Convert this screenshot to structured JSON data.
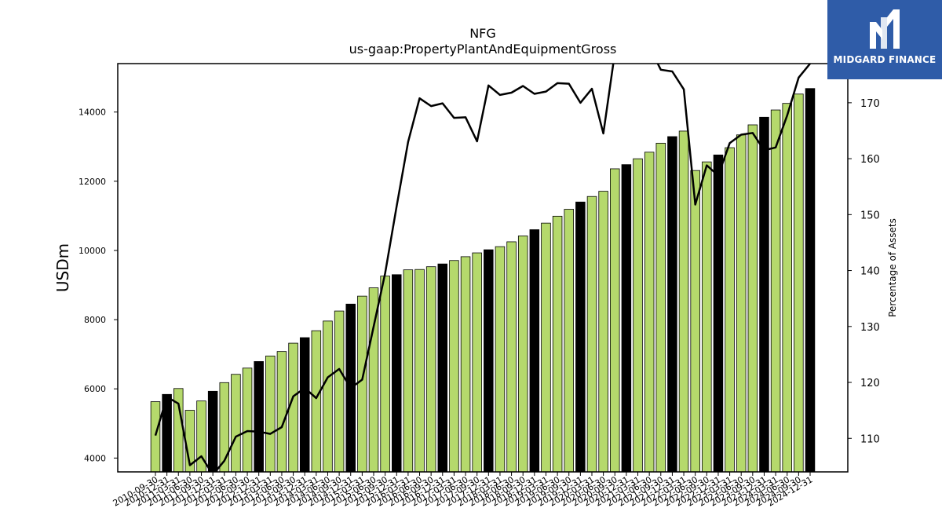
{
  "chart_data": {
    "type": "bar+line",
    "title": "NFG",
    "subtitle": "us-gaap:PropertyPlantAndEquipmentGross",
    "ylabel": "USDm",
    "y2label": "Percentage of Assets",
    "ylim": [
      3600,
      15400
    ],
    "y2lim": [
      104,
      177
    ],
    "yticks": [
      4000,
      6000,
      8000,
      10000,
      12000,
      14000
    ],
    "y2ticks": [
      110,
      120,
      130,
      140,
      150,
      160,
      170
    ],
    "categories": [
      "2010-09-30",
      "2010-12-31",
      "2011-03-31",
      "2011-06-30",
      "2011-09-30",
      "2011-12-31",
      "2012-03-31",
      "2012-06-30",
      "2012-09-30",
      "2012-12-31",
      "2013-03-31",
      "2013-06-30",
      "2013-09-30",
      "2013-12-31",
      "2014-03-31",
      "2014-06-30",
      "2014-09-30",
      "2014-12-31",
      "2015-03-31",
      "2015-06-30",
      "2015-09-30",
      "2015-12-31",
      "2016-03-31",
      "2016-06-30",
      "2016-09-30",
      "2016-12-31",
      "2017-03-31",
      "2017-06-30",
      "2017-09-30",
      "2017-12-31",
      "2018-03-31",
      "2018-06-30",
      "2018-09-30",
      "2018-12-31",
      "2019-03-31",
      "2019-06-30",
      "2019-09-30",
      "2019-12-31",
      "2020-03-31",
      "2020-06-30",
      "2020-09-30",
      "2020-12-31",
      "2021-03-31",
      "2021-06-30",
      "2021-09-30",
      "2021-12-31",
      "2022-03-31",
      "2022-06-30",
      "2022-09-30",
      "2022-12-31",
      "2023-03-31",
      "2023-06-30",
      "2023-09-30",
      "2023-12-31",
      "2024-03-31",
      "2024-06-30",
      "2024-09-30",
      "2024-12-31"
    ],
    "series": [
      {
        "type": "bar",
        "values": [
          5630,
          5840,
          6010,
          5380,
          5650,
          5930,
          6180,
          6420,
          6600,
          6790,
          6950,
          7080,
          7320,
          7480,
          7680,
          7960,
          8250,
          8450,
          8680,
          8920,
          9260,
          9300,
          9440,
          9450,
          9530,
          9610,
          9710,
          9820,
          9930,
          10020,
          10110,
          10250,
          10420,
          10600,
          10790,
          10990,
          11190,
          11400,
          11560,
          11710,
          12360,
          12480,
          12650,
          12840,
          13100,
          13290,
          13450,
          12310,
          12560,
          12760,
          12970,
          13340,
          13630,
          13850,
          14060,
          14250,
          14520,
          14680
        ],
        "colors": [
          "#b5d96c",
          "#000000",
          "#b5d96c",
          "#b5d96c",
          "#b5d96c",
          "#000000",
          "#b5d96c",
          "#b5d96c",
          "#b5d96c",
          "#000000",
          "#b5d96c",
          "#b5d96c",
          "#b5d96c",
          "#000000",
          "#b5d96c",
          "#b5d96c",
          "#b5d96c",
          "#000000",
          "#b5d96c",
          "#b5d96c",
          "#b5d96c",
          "#000000",
          "#b5d96c",
          "#b5d96c",
          "#b5d96c",
          "#000000",
          "#b5d96c",
          "#b5d96c",
          "#b5d96c",
          "#000000",
          "#b5d96c",
          "#b5d96c",
          "#b5d96c",
          "#000000",
          "#b5d96c",
          "#b5d96c",
          "#b5d96c",
          "#000000",
          "#b5d96c",
          "#b5d96c",
          "#b5d96c",
          "#000000",
          "#b5d96c",
          "#b5d96c",
          "#b5d96c",
          "#000000",
          "#b5d96c",
          "#b5d96c",
          "#b5d96c",
          "#000000",
          "#b5d96c",
          "#b5d96c",
          "#b5d96c",
          "#000000",
          "#b5d96c",
          "#b5d96c",
          "#b5d96c",
          "#000000"
        ]
      },
      {
        "type": "line",
        "axis": "right",
        "color": "#000000",
        "values": [
          110.5,
          117.4,
          116.2,
          105.2,
          106.8,
          103.5,
          106.0,
          110.3,
          111.3,
          111.2,
          110.8,
          112.0,
          117.5,
          119.0,
          117.2,
          120.9,
          122.4,
          119.0,
          120.5,
          130.0,
          139.5,
          151.5,
          163.0,
          170.8,
          169.4,
          169.9,
          167.3,
          167.4,
          163.1,
          173.1,
          171.4,
          171.8,
          173.0,
          171.6,
          172.0,
          173.5,
          173.4,
          170.0,
          172.5,
          164.5,
          179.0,
          181.0,
          178.5,
          180.0,
          175.9,
          175.6,
          172.4,
          151.8,
          158.8,
          157.0,
          162.8,
          164.3,
          164.6,
          161.5,
          162.0,
          167.7,
          174.5,
          177.0
        ]
      }
    ],
    "colors": {
      "bar_primary": "#b5d96c",
      "bar_alternate": "#000000",
      "line": "#000000"
    }
  },
  "logo": {
    "text": "MIDGARD FINANCE",
    "background": "#2f5ca8"
  }
}
